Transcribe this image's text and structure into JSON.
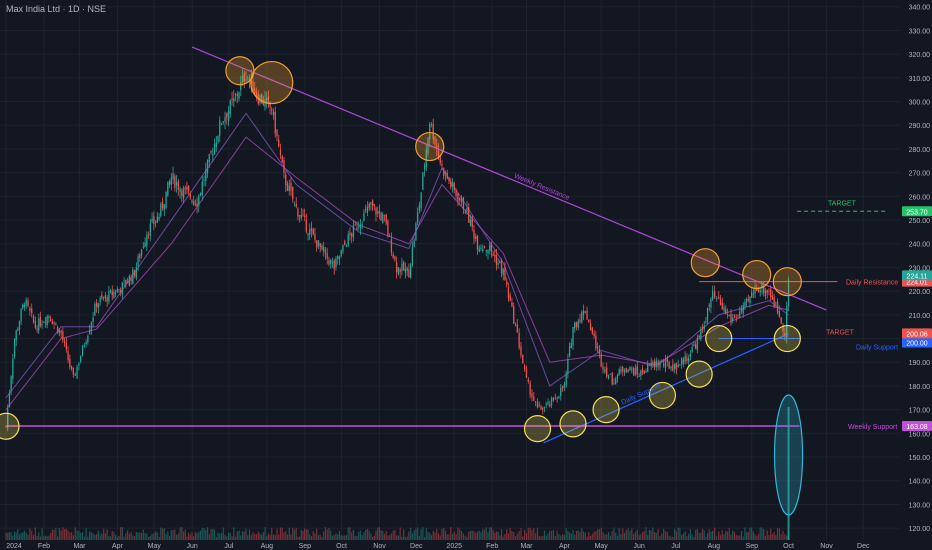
{
  "header": {
    "title": "Max India Ltd · 1D · NSE"
  },
  "colors": {
    "background": "#131722",
    "grid": "#1e222d",
    "axis_text": "#b2b5be",
    "up": "#26a69a",
    "down": "#ef5350",
    "ma_fast": "#7e57c2",
    "ma_slow": "#ab47bc",
    "weekly_resistance": "#b048d8",
    "weekly_support": "#c050d8",
    "daily_resistance": "#ef5350",
    "daily_support": "#2962ff",
    "target_up": "#26c46a",
    "circle_orange": "#f0a030",
    "circle_yellow": "#f5e050",
    "volume_oval": "#30b8d8"
  },
  "chart_data": {
    "type": "candlestick",
    "title": "Max India Ltd · 1D · NSE",
    "x_ticks": [
      "2024",
      "Feb",
      "Mar",
      "Apr",
      "May",
      "Jun",
      "Jul",
      "Aug",
      "Sep",
      "Oct",
      "Nov",
      "Dec",
      "2025",
      "Feb",
      "Mar",
      "Apr",
      "May",
      "Jun",
      "Jul",
      "Aug",
      "Sep",
      "Oct",
      "Nov",
      "Dec"
    ],
    "y_ticks": [
      "340.00",
      "330.00",
      "320.00",
      "310.00",
      "300.00",
      "290.00",
      "280.00",
      "270.00",
      "260.00",
      "250.00",
      "240.00",
      "230.00",
      "220.00",
      "210.00",
      "200.00",
      "190.00",
      "180.00",
      "170.00",
      "160.00",
      "150.00",
      "140.00",
      "130.00",
      "120.00"
    ],
    "ylim": [
      115,
      342
    ],
    "price_path": [
      {
        "x": "2024-01-01",
        "y": 163
      },
      {
        "x": "2024-01-08",
        "y": 200
      },
      {
        "x": "2024-01-16",
        "y": 216
      },
      {
        "x": "2024-01-25",
        "y": 205
      },
      {
        "x": "2024-02-05",
        "y": 210
      },
      {
        "x": "2024-02-15",
        "y": 202
      },
      {
        "x": "2024-02-25",
        "y": 183
      },
      {
        "x": "2024-03-05",
        "y": 198
      },
      {
        "x": "2024-03-15",
        "y": 215
      },
      {
        "x": "2024-03-25",
        "y": 218
      },
      {
        "x": "2024-04-05",
        "y": 222
      },
      {
        "x": "2024-04-15",
        "y": 228
      },
      {
        "x": "2024-04-25",
        "y": 245
      },
      {
        "x": "2024-05-05",
        "y": 252
      },
      {
        "x": "2024-05-15",
        "y": 268
      },
      {
        "x": "2024-05-25",
        "y": 262
      },
      {
        "x": "2024-06-05",
        "y": 258
      },
      {
        "x": "2024-06-15",
        "y": 275
      },
      {
        "x": "2024-06-25",
        "y": 292
      },
      {
        "x": "2024-07-05",
        "y": 300
      },
      {
        "x": "2024-07-15",
        "y": 312
      },
      {
        "x": "2024-07-25",
        "y": 302
      },
      {
        "x": "2024-08-05",
        "y": 297
      },
      {
        "x": "2024-08-15",
        "y": 268
      },
      {
        "x": "2024-08-25",
        "y": 255
      },
      {
        "x": "2024-09-05",
        "y": 245
      },
      {
        "x": "2024-09-15",
        "y": 237
      },
      {
        "x": "2024-09-25",
        "y": 230
      },
      {
        "x": "2024-10-05",
        "y": 241
      },
      {
        "x": "2024-10-15",
        "y": 249
      },
      {
        "x": "2024-10-25",
        "y": 256
      },
      {
        "x": "2024-11-05",
        "y": 250
      },
      {
        "x": "2024-11-15",
        "y": 230
      },
      {
        "x": "2024-11-25",
        "y": 228
      },
      {
        "x": "2024-12-05",
        "y": 262
      },
      {
        "x": "2024-12-12",
        "y": 292
      },
      {
        "x": "2024-12-22",
        "y": 272
      },
      {
        "x": "2025-01-01",
        "y": 262
      },
      {
        "x": "2025-01-10",
        "y": 255
      },
      {
        "x": "2025-01-20",
        "y": 240
      },
      {
        "x": "2025-01-30",
        "y": 238
      },
      {
        "x": "2025-02-10",
        "y": 228
      },
      {
        "x": "2025-02-20",
        "y": 205
      },
      {
        "x": "2025-03-01",
        "y": 182
      },
      {
        "x": "2025-03-10",
        "y": 170
      },
      {
        "x": "2025-03-20",
        "y": 172
      },
      {
        "x": "2025-04-01",
        "y": 180
      },
      {
        "x": "2025-04-08",
        "y": 205
      },
      {
        "x": "2025-04-18",
        "y": 212
      },
      {
        "x": "2025-05-01",
        "y": 190
      },
      {
        "x": "2025-05-10",
        "y": 182
      },
      {
        "x": "2025-05-20",
        "y": 188
      },
      {
        "x": "2025-06-01",
        "y": 185
      },
      {
        "x": "2025-06-15",
        "y": 190
      },
      {
        "x": "2025-06-30",
        "y": 188
      },
      {
        "x": "2025-07-10",
        "y": 192
      },
      {
        "x": "2025-07-20",
        "y": 200
      },
      {
        "x": "2025-07-31",
        "y": 218
      },
      {
        "x": "2025-08-05",
        "y": 215
      },
      {
        "x": "2025-08-15",
        "y": 208
      },
      {
        "x": "2025-08-25",
        "y": 212
      },
      {
        "x": "2025-09-05",
        "y": 222
      },
      {
        "x": "2025-09-15",
        "y": 220
      },
      {
        "x": "2025-09-22",
        "y": 212
      },
      {
        "x": "2025-09-28",
        "y": 203
      },
      {
        "x": "2025-10-01",
        "y": 224
      }
    ],
    "moving_averages": [
      {
        "name": "",
        "points": [
          {
            "x": "2024-01-01",
            "y": 175
          },
          {
            "x": "2024-02-15",
            "y": 205
          },
          {
            "x": "2024-03-15",
            "y": 205
          },
          {
            "x": "2024-05-15",
            "y": 250
          },
          {
            "x": "2024-07-15",
            "y": 295
          },
          {
            "x": "2024-08-25",
            "y": 265
          },
          {
            "x": "2024-10-15",
            "y": 245
          },
          {
            "x": "2024-11-25",
            "y": 238
          },
          {
            "x": "2024-12-22",
            "y": 272
          },
          {
            "x": "2025-02-10",
            "y": 232
          },
          {
            "x": "2025-03-20",
            "y": 180
          },
          {
            "x": "2025-05-01",
            "y": 195
          },
          {
            "x": "2025-06-15",
            "y": 188
          },
          {
            "x": "2025-08-05",
            "y": 210
          },
          {
            "x": "2025-09-15",
            "y": 216
          },
          {
            "x": "2025-10-01",
            "y": 210
          }
        ]
      },
      {
        "name": "",
        "points": [
          {
            "x": "2024-01-01",
            "y": 170
          },
          {
            "x": "2024-02-15",
            "y": 200
          },
          {
            "x": "2024-03-15",
            "y": 204
          },
          {
            "x": "2024-05-15",
            "y": 240
          },
          {
            "x": "2024-07-15",
            "y": 285
          },
          {
            "x": "2024-08-25",
            "y": 268
          },
          {
            "x": "2024-10-15",
            "y": 248
          },
          {
            "x": "2024-11-25",
            "y": 240
          },
          {
            "x": "2024-12-22",
            "y": 265
          },
          {
            "x": "2025-02-10",
            "y": 236
          },
          {
            "x": "2025-03-20",
            "y": 190
          },
          {
            "x": "2025-05-01",
            "y": 193
          },
          {
            "x": "2025-06-15",
            "y": 189
          },
          {
            "x": "2025-08-05",
            "y": 205
          },
          {
            "x": "2025-09-15",
            "y": 214
          },
          {
            "x": "2025-10-01",
            "y": 212
          }
        ]
      }
    ],
    "trendlines": [
      {
        "name": "Weekly Resistance",
        "label": "Weekly Resistance",
        "from": {
          "x": "2024-06-01",
          "y": 323
        },
        "to": {
          "x": "2025-11-01",
          "y": 212
        }
      },
      {
        "name": "Daily Support",
        "label": "Daily Support",
        "from": {
          "x": "2025-03-15",
          "y": 156
        },
        "to": {
          "x": "2025-10-01",
          "y": 202
        }
      }
    ],
    "horizontal_levels": [
      {
        "label": "Weekly Support",
        "value": 163.08,
        "tag": "163.08",
        "from": "2024-01-01",
        "to": "2025-10-10"
      },
      {
        "label": "Daily Resistance",
        "value": 224.01,
        "tag": "224.01",
        "from": "2025-07-20",
        "to": "2025-11-10"
      },
      {
        "label": "Daily Support",
        "value": 200.0,
        "tag": "200.00",
        "from": "2025-08-05",
        "to": "2025-10-10"
      },
      {
        "label": "TARGET",
        "value": 200.06,
        "tag": "200.06",
        "from": "2025-10-01",
        "to": "2025-10-01"
      },
      {
        "label": "TARGET",
        "value": 253.7,
        "tag": "253.70",
        "from": "2025-10-08",
        "to": "2025-12-20"
      }
    ],
    "current_price_tag": "224.11",
    "volume_spike": {
      "x": "2025-10-01",
      "value": 0.95
    },
    "highlights": {
      "orange": [
        {
          "x": "2024-07-10",
          "y": 313
        },
        {
          "x": "2024-08-05",
          "y": 308
        },
        {
          "x": "2024-12-12",
          "y": 281
        },
        {
          "x": "2025-07-25",
          "y": 232
        },
        {
          "x": "2025-09-05",
          "y": 227
        },
        {
          "x": "2025-09-30",
          "y": 224
        }
      ],
      "yellow": [
        {
          "x": "2024-01-01",
          "y": 163
        },
        {
          "x": "2025-03-10",
          "y": 162
        },
        {
          "x": "2025-04-08",
          "y": 164
        },
        {
          "x": "2025-05-05",
          "y": 170
        },
        {
          "x": "2025-06-20",
          "y": 176
        },
        {
          "x": "2025-07-20",
          "y": 185
        },
        {
          "x": "2025-08-05",
          "y": 200
        },
        {
          "x": "2025-09-30",
          "y": 200
        }
      ]
    }
  }
}
